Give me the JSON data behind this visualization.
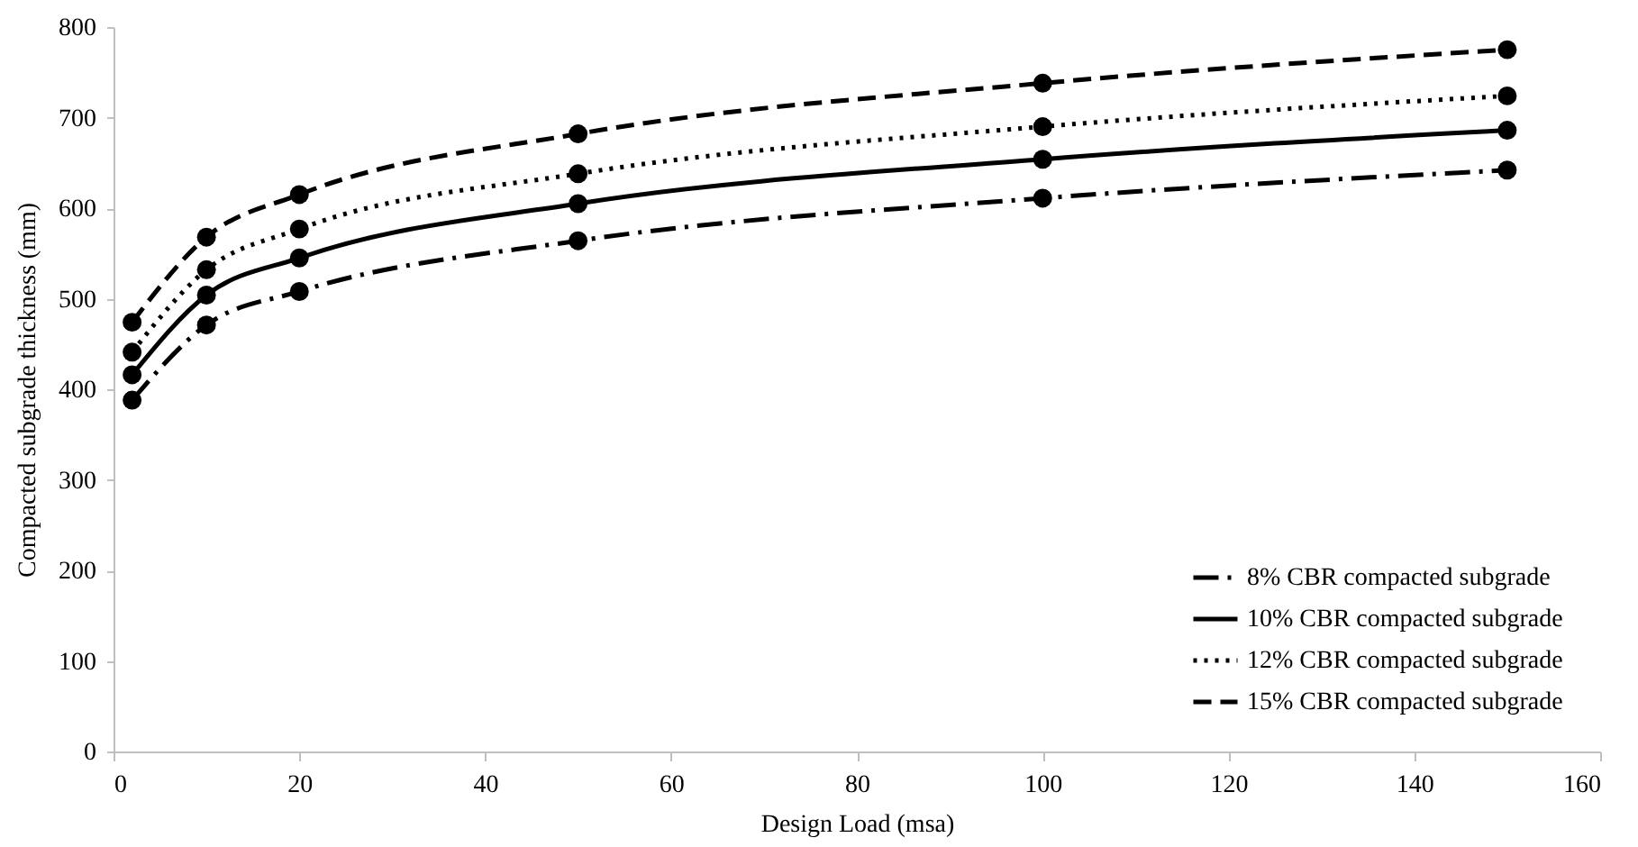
{
  "chart_data": {
    "type": "line",
    "xlabel": "Design Load (msa)",
    "ylabel": "Compacted subgrade thickness (mm)",
    "x": [
      2,
      10,
      20,
      50,
      100,
      150
    ],
    "series": [
      {
        "name": "8% CBR compacted subgrade",
        "color": "#000000",
        "line_style": "dashdot",
        "values": [
          388,
          471,
          508,
          564,
          611,
          642
        ]
      },
      {
        "name": "10% CBR compacted subgrade",
        "color": "#000000",
        "line_style": "solid",
        "values": [
          416,
          504,
          545,
          605,
          654,
          686
        ]
      },
      {
        "name": "12% CBR compacted subgrade",
        "color": "#000000",
        "line_style": "dotted",
        "values": [
          441,
          532,
          577,
          638,
          690,
          724
        ]
      },
      {
        "name": "15% CBR compacted subgrade",
        "color": "#000000",
        "line_style": "dashed",
        "values": [
          474,
          568,
          615,
          682,
          738,
          775
        ]
      }
    ],
    "xlim": [
      0,
      160
    ],
    "xticks": [
      0,
      20,
      40,
      60,
      80,
      100,
      120,
      140,
      160
    ],
    "ylim": [
      0,
      800
    ],
    "yticks": [
      0,
      100,
      200,
      300,
      400,
      500,
      600,
      700,
      800
    ],
    "grid": false,
    "legend": "bottom right",
    "marker": "circle"
  }
}
